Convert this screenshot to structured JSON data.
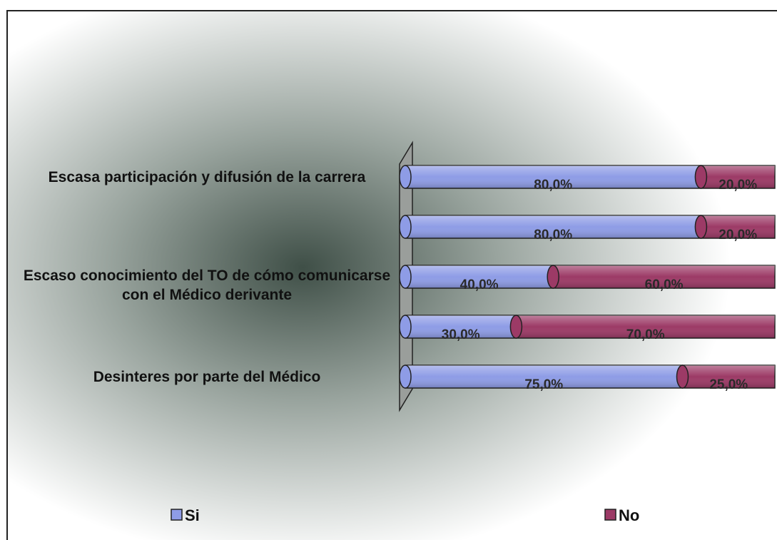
{
  "chart_data": {
    "type": "bar",
    "orientation": "horizontal",
    "stacked": true,
    "categories": [
      "Escasa participación y difusión de la carrera",
      null,
      "Escaso conocimiento del TO de cómo comunicarse con el Médico derivante",
      null,
      "Desinteres por parte del Médico"
    ],
    "series": [
      {
        "name": "Si",
        "color": "#8e9ce6",
        "values": [
          80,
          80,
          40,
          30,
          75
        ],
        "value_labels": [
          "80,0%",
          "80,0%",
          "40,0%",
          "30,0%",
          "75,0%"
        ]
      },
      {
        "name": "No",
        "color": "#9c3a66",
        "values": [
          20,
          20,
          60,
          70,
          25
        ],
        "value_labels": [
          "20,0%",
          "20,0%",
          "60,0%",
          "70,0%",
          "25,0%"
        ]
      }
    ],
    "xlim": [
      0,
      100
    ]
  }
}
